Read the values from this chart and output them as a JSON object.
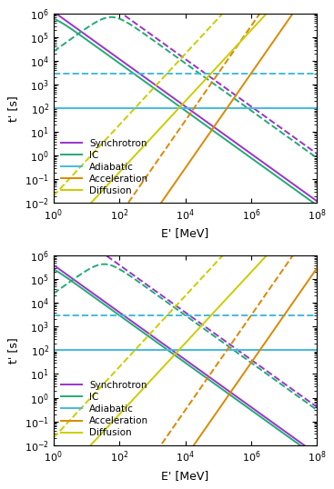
{
  "xlim": [
    1.0,
    100000000.0
  ],
  "ylim": [
    0.01,
    1000000.0
  ],
  "xlabel": "E' [MeV]",
  "ylabel": "t' [s]",
  "colors": {
    "synchrotron": "#9933cc",
    "IC": "#22aa77",
    "adiabatic": "#44bbdd",
    "acceleration": "#dd8800",
    "diffusion": "#cccc00"
  },
  "panel1": {
    "sync_A_s": 1200000.0,
    "sync_n_s": -1.0,
    "sync_A_d": 120000000.0,
    "sync_n_d": -1.0,
    "IC_Ath_s": 800000.0,
    "IC_Bkn_s": 4e-07,
    "IC_Ath_d": 80000000.0,
    "IC_Bkn_d": 4e-05,
    "adiab_s": 100.0,
    "adiab_d": 3000.0,
    "acc_A_s": 3e-09,
    "acc_n_s": 2.0,
    "acc_A_d": 3e-07,
    "acc_n_d": 2.0,
    "dif_A_s": 0.0002,
    "dif_n_s": 1.5,
    "dif_A_d": 0.02,
    "dif_n_d": 1.5
  },
  "panel2": {
    "sync_A_s": 400000.0,
    "sync_n_s": -1.0,
    "sync_A_d": 40000000.0,
    "sync_n_d": -1.0,
    "IC_Ath_s": 300000.0,
    "IC_Bkn_s": 4e-07,
    "IC_Ath_d": 30000000.0,
    "IC_Bkn_d": 4e-05,
    "adiab_s": 100.0,
    "adiab_d": 3000.0,
    "acc_A_s": 3e-11,
    "acc_n_s": 2.0,
    "acc_A_d": 3e-09,
    "acc_n_d": 2.0,
    "dif_A_s": 0.0002,
    "dif_n_s": 1.5,
    "dif_A_d": 0.02,
    "dif_n_d": 1.5
  }
}
